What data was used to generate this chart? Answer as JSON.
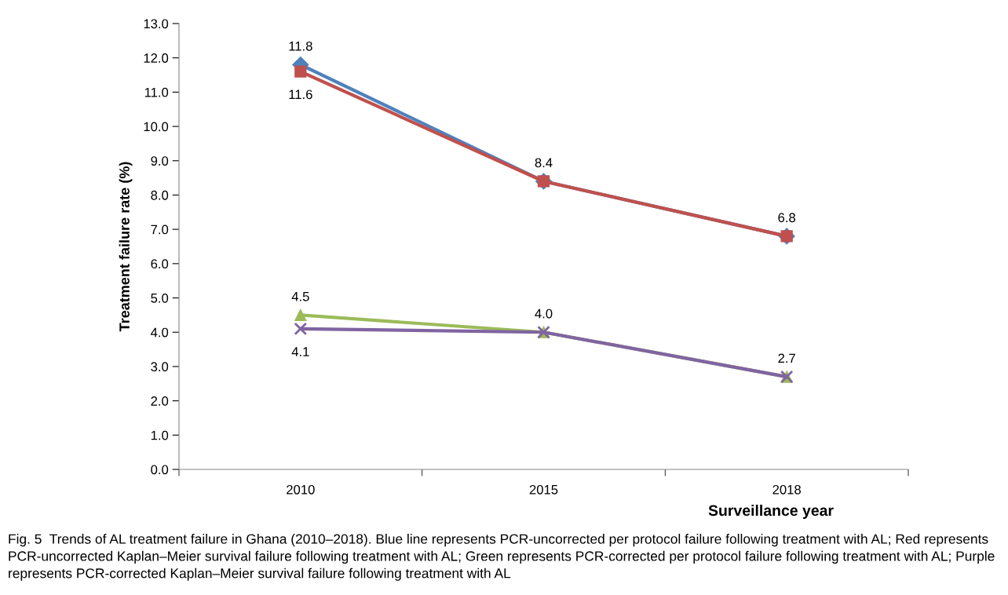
{
  "chart_data": {
    "type": "line",
    "ylabel": "Treatment failure rate (%)",
    "xlabel": "Surveillance year",
    "categories": [
      "2010",
      "2015",
      "2018"
    ],
    "series": [
      {
        "color": "#4f81bd",
        "marker": "diamond",
        "values": [
          11.8,
          8.4,
          6.8
        ],
        "value_labels": [
          "11.8",
          "8.4",
          "6.8"
        ]
      },
      {
        "color": "#c0504d",
        "marker": "square",
        "values": [
          11.6,
          8.4,
          6.8
        ],
        "value_labels": [
          "11.6",
          null,
          null
        ]
      },
      {
        "color": "#9bbb59",
        "marker": "triangle",
        "values": [
          4.5,
          4.0,
          2.7
        ],
        "value_labels": [
          "4.5",
          "4.0",
          "2.7"
        ]
      },
      {
        "color": "#8064a2",
        "marker": "cross",
        "values": [
          4.1,
          4.0,
          2.7
        ],
        "value_labels": [
          "4.1",
          null,
          null
        ]
      }
    ],
    "ylim": [
      0,
      13
    ],
    "yticks": [
      {
        "value": 0,
        "label": "0.0"
      },
      {
        "value": 1,
        "label": "1.0"
      },
      {
        "value": 2,
        "label": "2.0"
      },
      {
        "value": 3,
        "label": "3.0"
      },
      {
        "value": 4,
        "label": "4.0"
      },
      {
        "value": 5,
        "label": "5.0"
      },
      {
        "value": 6,
        "label": "6.0"
      },
      {
        "value": 7,
        "label": "7.0"
      },
      {
        "value": 8,
        "label": "8.0"
      },
      {
        "value": 9,
        "label": "9.0"
      },
      {
        "value": 10,
        "label": "10.0"
      },
      {
        "value": 11,
        "label": "11.0"
      },
      {
        "value": 12,
        "label": "12.0"
      },
      {
        "value": 13,
        "label": "13.0"
      }
    ],
    "grid": false,
    "line_style": "solid",
    "annotations": [
      "Fig. 5  Trends of AL treatment failure in Ghana (2010–2018). Blue line represents PCR-uncorrected per protocol failure following treatment with AL; Red represents PCR-uncorrected Kaplan–Meier survival failure following treatment with AL; Green represents PCR-corrected per protocol failure following treatment with AL; Purple represents PCR-corrected Kaplan–Meier survival failure following treatment with AL"
    ]
  }
}
